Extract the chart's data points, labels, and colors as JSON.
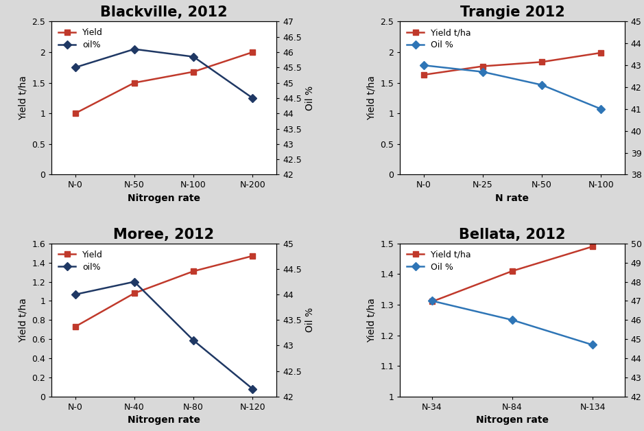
{
  "panels": [
    {
      "title": "Blackville, 2012",
      "title_fontsize": 15,
      "title_bold": true,
      "xlabel": "Nitrogen rate",
      "ylabel_left": "Yield t/ha",
      "ylabel_right": "Oil %",
      "x_labels": [
        "N-0",
        "N-50",
        "N-100",
        "N-200"
      ],
      "yield_data": [
        1.0,
        1.5,
        1.68,
        2.0
      ],
      "oil_data": [
        45.5,
        46.1,
        45.85,
        44.5
      ],
      "yield_color": "#c0392b",
      "oil_color": "#1f3864",
      "ylim_left": [
        0,
        2.5
      ],
      "ylim_right": [
        42,
        47
      ],
      "yticks_left": [
        0,
        0.5,
        1.0,
        1.5,
        2.0,
        2.5
      ],
      "yticks_right": [
        42,
        42.5,
        43,
        43.5,
        44,
        44.5,
        45,
        45.5,
        46,
        46.5,
        47
      ],
      "legend_yield": "Yield",
      "legend_oil": "oil%"
    },
    {
      "title": "Trangie 2012",
      "title_fontsize": 15,
      "title_bold": true,
      "xlabel": "N rate",
      "ylabel_left": "Yield t/ha",
      "ylabel_right": "Oil %",
      "x_labels": [
        "N-0",
        "N-25",
        "N-50",
        "N-100"
      ],
      "yield_data": [
        1.63,
        1.77,
        1.84,
        1.99
      ],
      "oil_data": [
        43.0,
        42.7,
        42.1,
        41.0
      ],
      "yield_color": "#c0392b",
      "oil_color": "#2e75b6",
      "ylim_left": [
        0,
        2.5
      ],
      "ylim_right": [
        38,
        45
      ],
      "yticks_left": [
        0,
        0.5,
        1.0,
        1.5,
        2.0,
        2.5
      ],
      "yticks_right": [
        38,
        39,
        40,
        41,
        42,
        43,
        44,
        45
      ],
      "legend_yield": "Yield t/ha",
      "legend_oil": "Oil %"
    },
    {
      "title": "Moree, 2012",
      "title_fontsize": 15,
      "title_bold": true,
      "xlabel": "Nitrogen rate",
      "ylabel_left": "Yield t/ha",
      "ylabel_right": "Oil %",
      "x_labels": [
        "N-0",
        "N-40",
        "N-80",
        "N-120"
      ],
      "yield_data": [
        0.73,
        1.08,
        1.31,
        1.47
      ],
      "oil_data": [
        44.0,
        44.25,
        43.1,
        42.15
      ],
      "yield_color": "#c0392b",
      "oil_color": "#1f3864",
      "ylim_left": [
        0,
        1.6
      ],
      "ylim_right": [
        42,
        45
      ],
      "yticks_left": [
        0,
        0.2,
        0.4,
        0.6,
        0.8,
        1.0,
        1.2,
        1.4,
        1.6
      ],
      "yticks_right": [
        42,
        42.5,
        43,
        43.5,
        44,
        44.5,
        45
      ],
      "legend_yield": "Yield",
      "legend_oil": "oil%"
    },
    {
      "title": "Bellata, 2012",
      "title_fontsize": 15,
      "title_bold": true,
      "xlabel": "Nitrogen rate",
      "ylabel_left": "Yield t/ha",
      "ylabel_right": "Oil %",
      "x_labels": [
        "N-34",
        "N-84",
        "N-134"
      ],
      "yield_data": [
        1.31,
        1.41,
        1.49
      ],
      "oil_data": [
        47.0,
        46.0,
        44.7
      ],
      "yield_color": "#c0392b",
      "oil_color": "#2e75b6",
      "ylim_left": [
        1.0,
        1.5
      ],
      "ylim_right": [
        42,
        50
      ],
      "yticks_left": [
        1.0,
        1.1,
        1.2,
        1.3,
        1.4,
        1.5
      ],
      "yticks_right": [
        42,
        43,
        44,
        45,
        46,
        47,
        48,
        49,
        50
      ],
      "legend_yield": "Yield t/ha",
      "legend_oil": "Oil %"
    }
  ],
  "fig_bg": "#d9d9d9",
  "panel_bg": "#ffffff",
  "marker_yield": "s",
  "marker_oil": "D",
  "linewidth": 1.8,
  "markersize": 6,
  "tick_fontsize": 9,
  "label_fontsize": 10,
  "legend_fontsize": 9
}
